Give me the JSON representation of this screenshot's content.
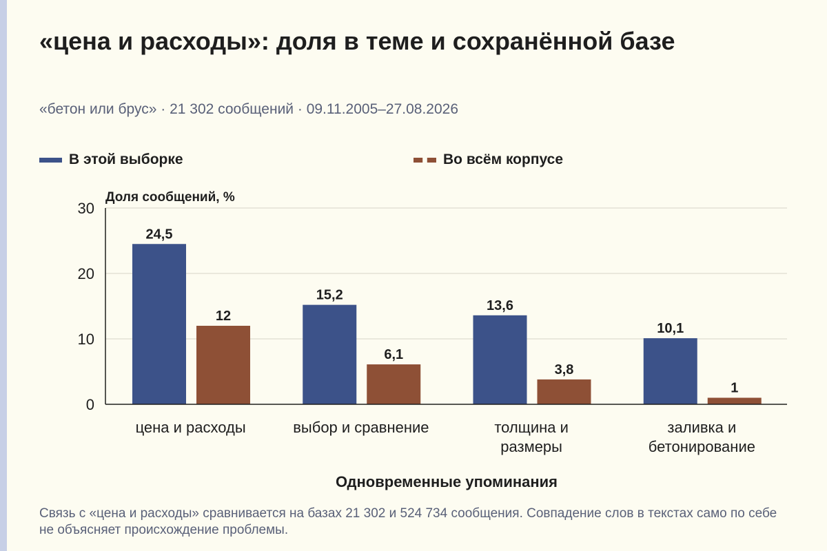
{
  "title": "«цена и расходы»: доля в теме и сохранённой базе",
  "subtitle": "«бетон или брус» · 21 302 сообщений · 09.11.2005–27.08.2026",
  "footnote": "Связь с «цена и расходы» сравнивается на базах 21 302 и 524 734 сообщения. Совпадение слов в текстах само по себе не объясняет происхождение проблемы.",
  "colors": {
    "background": "#fdfcf1",
    "series_1": "#3c5289",
    "series_2": "#8e5036",
    "axis": "#1e1e1e",
    "grid": "#d6d4c8"
  },
  "chart_data": {
    "type": "bar",
    "xlabel": "Одновременные упоминания",
    "ylabel": "Доля сообщений, %",
    "ylim": [
      0,
      30
    ],
    "yticks": [
      0,
      10,
      20,
      30
    ],
    "grid": true,
    "legend_position": "top",
    "categories": [
      [
        "цена и расходы"
      ],
      [
        "выбор и сравнение"
      ],
      [
        "толщина и",
        "размеры"
      ],
      [
        "заливка и",
        "бетонирование"
      ]
    ],
    "series": [
      {
        "name": "В этой выборке",
        "values": [
          24.5,
          15.2,
          13.6,
          10.1
        ],
        "labels": [
          "24,5",
          "15,2",
          "13,6",
          "10,1"
        ]
      },
      {
        "name": "Во всём корпусе",
        "values": [
          12,
          6.1,
          3.8,
          1
        ],
        "labels": [
          "12",
          "6,1",
          "3,8",
          "1"
        ]
      }
    ]
  }
}
